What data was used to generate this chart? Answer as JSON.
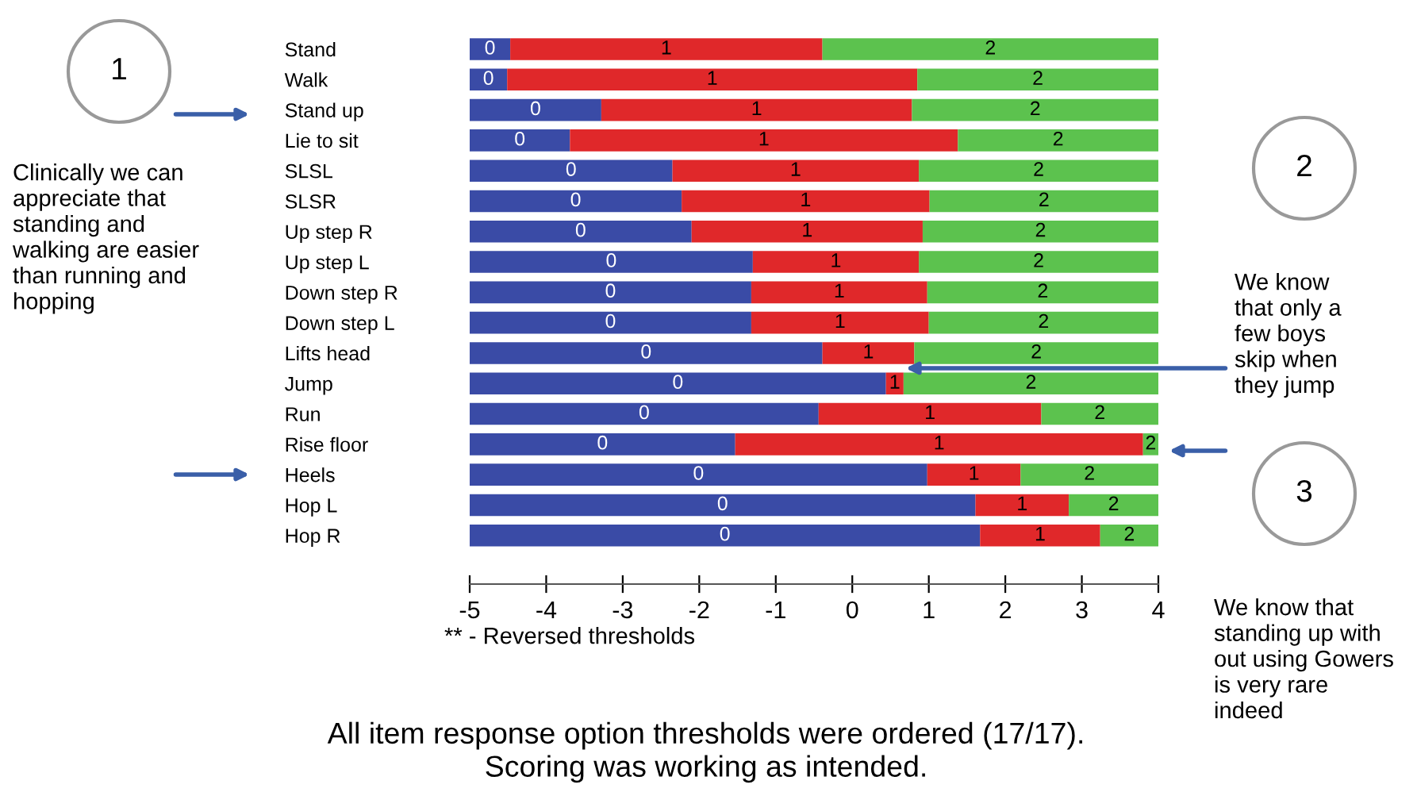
{
  "chart_data": {
    "type": "bar",
    "orientation": "horizontal",
    "categories": [
      "Stand",
      "Walk",
      "Stand up",
      "Lie to sit",
      "SLSL",
      "SLSR",
      "Up step R",
      "Up step L",
      "Down step R",
      "Down step L",
      "Lifts head",
      "Jump",
      "Run",
      "Rise floor",
      "Heels",
      "Hop L",
      "Hop R"
    ],
    "series": [
      {
        "name": "0",
        "color": "#3a4ba6",
        "base": [
          -5,
          -5,
          -5,
          -5,
          -5,
          -5,
          -5,
          -5,
          -5,
          -5,
          -5,
          -5,
          -5,
          -5,
          -5,
          -5,
          -5
        ],
        "values": [
          0.53,
          0.49,
          1.72,
          1.31,
          2.65,
          2.77,
          2.9,
          3.7,
          3.68,
          3.68,
          4.61,
          5.44,
          4.56,
          3.47,
          5.98,
          6.61,
          6.67
        ]
      },
      {
        "name": "1",
        "color": "#e0282a",
        "base": [
          -4.47,
          -4.51,
          -3.28,
          -3.69,
          -2.35,
          -2.23,
          -2.1,
          -1.3,
          -1.32,
          -1.32,
          -0.39,
          0.44,
          -0.44,
          -1.53,
          0.98,
          1.61,
          1.67
        ],
        "values": [
          4.08,
          5.36,
          4.06,
          5.07,
          3.22,
          3.24,
          3.02,
          2.17,
          2.3,
          2.32,
          1.2,
          0.23,
          2.91,
          5.33,
          1.22,
          1.22,
          1.57
        ]
      },
      {
        "name": "2",
        "color": "#5cc24e",
        "base": [
          -0.39,
          0.85,
          0.78,
          1.38,
          0.87,
          1.01,
          0.92,
          0.87,
          0.98,
          1.0,
          0.81,
          0.67,
          2.47,
          3.8,
          2.2,
          2.83,
          3.24
        ],
        "values": [
          4.39,
          3.15,
          3.22,
          2.62,
          3.13,
          2.99,
          3.08,
          3.13,
          3.02,
          3.0,
          3.19,
          3.33,
          1.53,
          0.2,
          1.8,
          1.17,
          0.76
        ]
      }
    ],
    "xlim": [
      -5,
      4
    ],
    "xticks": [
      -5,
      -4,
      -3,
      -2,
      -1,
      0,
      1,
      2,
      3,
      4
    ],
    "annotations": [
      "** - Reversed thresholds",
      "All item response option thresholds were ordered (17/17).\nScoring was working as intended.",
      "1",
      "Clinically we can\nappreciate that\nstanding and\nwalking are easier\nthan running and\nhopping",
      "2",
      "We know\nthat only a\nfew boys\nskip when\nthey jump",
      "3",
      "We know that\nstanding up with\nout using Gowers\nis very rare\nindeed"
    ]
  }
}
